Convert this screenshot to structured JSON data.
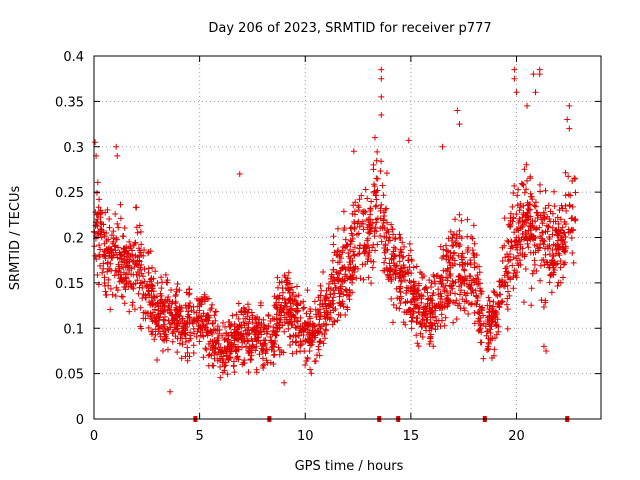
{
  "chart_data": {
    "type": "scatter",
    "title": "Day 206 of 2023, SRMTID for receiver p777",
    "xlabel": "GPS time / hours",
    "ylabel": "SRMTID / TECUs",
    "xlim": [
      0,
      24
    ],
    "ylim": [
      0,
      0.4
    ],
    "x_ticks": [
      0,
      5,
      10,
      15,
      20
    ],
    "y_ticks": [
      0,
      0.05,
      0.1,
      0.15,
      0.2,
      0.25,
      0.3,
      0.35,
      0.4
    ],
    "grid": true,
    "marker": "+",
    "series_color": "#e00000",
    "gap_markers_x": [
      4.8,
      8.3,
      13.5,
      14.4,
      18.5,
      22.4
    ],
    "envelope": {
      "x": [
        0,
        0.5,
        1,
        1.5,
        2,
        2.5,
        3,
        3.5,
        4,
        4.5,
        5,
        5.5,
        6,
        6.5,
        7,
        7.5,
        8,
        8.5,
        9,
        9.5,
        10,
        10.5,
        11,
        11.5,
        12,
        12.5,
        13,
        13.5,
        14,
        14.5,
        15,
        15.5,
        16,
        16.5,
        17,
        17.5,
        18,
        18.5,
        19,
        19.5,
        20,
        20.5,
        21,
        21.5,
        22,
        22.5,
        22.8
      ],
      "mean": [
        0.205,
        0.185,
        0.175,
        0.165,
        0.17,
        0.14,
        0.12,
        0.115,
        0.11,
        0.105,
        0.11,
        0.095,
        0.075,
        0.08,
        0.1,
        0.09,
        0.085,
        0.09,
        0.13,
        0.115,
        0.09,
        0.095,
        0.12,
        0.15,
        0.17,
        0.2,
        0.21,
        0.23,
        0.17,
        0.16,
        0.14,
        0.12,
        0.115,
        0.14,
        0.17,
        0.16,
        0.15,
        0.1,
        0.11,
        0.17,
        0.2,
        0.22,
        0.2,
        0.19,
        0.19,
        0.22,
        0.24
      ],
      "spread": [
        0.05,
        0.045,
        0.045,
        0.04,
        0.045,
        0.04,
        0.035,
        0.035,
        0.035,
        0.035,
        0.035,
        0.03,
        0.025,
        0.025,
        0.04,
        0.03,
        0.03,
        0.03,
        0.04,
        0.035,
        0.03,
        0.03,
        0.035,
        0.045,
        0.045,
        0.05,
        0.05,
        0.06,
        0.045,
        0.045,
        0.04,
        0.035,
        0.035,
        0.045,
        0.055,
        0.05,
        0.045,
        0.03,
        0.035,
        0.05,
        0.055,
        0.06,
        0.055,
        0.05,
        0.05,
        0.05,
        0.045
      ]
    },
    "outliers": [
      {
        "x": 0.05,
        "y": 0.305
      },
      {
        "x": 0.1,
        "y": 0.29
      },
      {
        "x": 1.05,
        "y": 0.3
      },
      {
        "x": 1.1,
        "y": 0.29
      },
      {
        "x": 6.9,
        "y": 0.27
      },
      {
        "x": 12.3,
        "y": 0.295
      },
      {
        "x": 13.3,
        "y": 0.31
      },
      {
        "x": 13.6,
        "y": 0.385
      },
      {
        "x": 13.6,
        "y": 0.375
      },
      {
        "x": 13.6,
        "y": 0.355
      },
      {
        "x": 13.6,
        "y": 0.335
      },
      {
        "x": 14.9,
        "y": 0.307
      },
      {
        "x": 16.5,
        "y": 0.3
      },
      {
        "x": 17.2,
        "y": 0.34
      },
      {
        "x": 17.3,
        "y": 0.325
      },
      {
        "x": 19.9,
        "y": 0.385
      },
      {
        "x": 19.9,
        "y": 0.375
      },
      {
        "x": 20.0,
        "y": 0.36
      },
      {
        "x": 20.5,
        "y": 0.345
      },
      {
        "x": 20.8,
        "y": 0.38
      },
      {
        "x": 21.1,
        "y": 0.385
      },
      {
        "x": 21.1,
        "y": 0.38
      },
      {
        "x": 20.9,
        "y": 0.36
      },
      {
        "x": 22.5,
        "y": 0.345
      },
      {
        "x": 22.4,
        "y": 0.33
      },
      {
        "x": 22.5,
        "y": 0.32
      },
      {
        "x": 3.6,
        "y": 0.03
      },
      {
        "x": 9.0,
        "y": 0.04
      },
      {
        "x": 21.4,
        "y": 0.075
      },
      {
        "x": 21.3,
        "y": 0.08
      }
    ]
  }
}
